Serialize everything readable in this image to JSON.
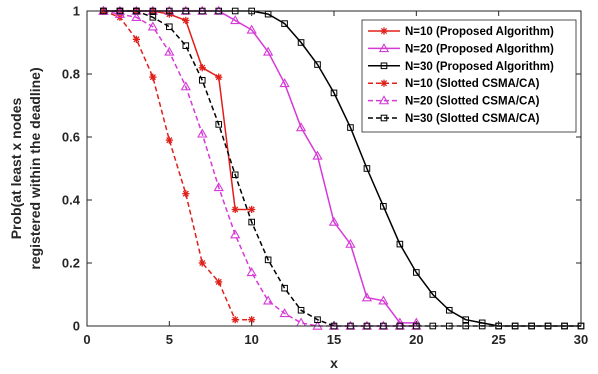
{
  "chart_data": {
    "type": "line",
    "xlabel": "x",
    "ylabel_lines": [
      "Prob(at least x nodes",
      "registered within the deadline)"
    ],
    "xlim": [
      0,
      30
    ],
    "ylim": [
      0,
      1
    ],
    "xticks": [
      "0",
      "5",
      "10",
      "15",
      "20",
      "25",
      "30"
    ],
    "yticks": [
      "0",
      "0.2",
      "0.4",
      "0.6",
      "0.8",
      "1"
    ],
    "grid": false,
    "legend_position": "top-right",
    "series": [
      {
        "name": "N=10 (Proposed Algorithm)",
        "color": "#e0201b",
        "dash": "solid",
        "marker": "asterisk",
        "x": [
          1,
          2,
          3,
          4,
          5,
          6,
          7,
          8,
          9,
          10
        ],
        "y": [
          1,
          1,
          1,
          1,
          0.99,
          0.97,
          0.82,
          0.79,
          0.37,
          0.37
        ]
      },
      {
        "name": "N=20 (Proposed Algorithm)",
        "color": "#d63ad6",
        "dash": "solid",
        "marker": "triangle",
        "x": [
          1,
          2,
          3,
          4,
          5,
          6,
          7,
          8,
          9,
          10,
          11,
          12,
          13,
          14,
          15,
          16,
          17,
          18,
          19,
          20
        ],
        "y": [
          1,
          1,
          1,
          1,
          1,
          1,
          1,
          1,
          0.97,
          0.94,
          0.87,
          0.77,
          0.63,
          0.54,
          0.33,
          0.26,
          0.09,
          0.08,
          0.01,
          0.01
        ]
      },
      {
        "name": "N=30 (Proposed Algorithm)",
        "color": "#000000",
        "dash": "solid",
        "marker": "square",
        "x": [
          1,
          2,
          3,
          4,
          5,
          6,
          7,
          8,
          9,
          10,
          11,
          12,
          13,
          14,
          15,
          16,
          17,
          18,
          19,
          20,
          21,
          22,
          23,
          24,
          25,
          26,
          27,
          28,
          29,
          30
        ],
        "y": [
          1,
          1,
          1,
          1,
          1,
          1,
          1,
          1,
          1,
          1,
          0.99,
          0.96,
          0.9,
          0.83,
          0.74,
          0.63,
          0.5,
          0.38,
          0.26,
          0.17,
          0.1,
          0.05,
          0.02,
          0.01,
          0,
          0,
          0,
          0,
          0,
          0
        ]
      },
      {
        "name": "N=10 (Slotted CSMA/CA)",
        "color": "#e0201b",
        "dash": "dashed",
        "marker": "asterisk",
        "x": [
          1,
          2,
          3,
          4,
          5,
          6,
          7,
          8,
          9,
          10
        ],
        "y": [
          1,
          0.98,
          0.91,
          0.79,
          0.59,
          0.42,
          0.2,
          0.14,
          0.02,
          0.02
        ]
      },
      {
        "name": "N=20 (Slotted CSMA/CA)",
        "color": "#d63ad6",
        "dash": "dashed",
        "marker": "triangle",
        "x": [
          1,
          2,
          3,
          4,
          5,
          6,
          7,
          8,
          9,
          10,
          11,
          12,
          13,
          14,
          15,
          16,
          17,
          18,
          19,
          20
        ],
        "y": [
          1,
          0.99,
          0.98,
          0.95,
          0.87,
          0.76,
          0.61,
          0.44,
          0.29,
          0.17,
          0.08,
          0.04,
          0.01,
          0,
          0,
          0,
          0,
          0,
          0,
          0
        ]
      },
      {
        "name": "N=30 (Slotted CSMA/CA)",
        "color": "#000000",
        "dash": "dashed",
        "marker": "square",
        "x": [
          1,
          2,
          3,
          4,
          5,
          6,
          7,
          8,
          9,
          10,
          11,
          12,
          13,
          14,
          15,
          16,
          17,
          18,
          19,
          20,
          21,
          22,
          23,
          24,
          25,
          26,
          27,
          28,
          29,
          30
        ],
        "y": [
          1,
          1,
          1,
          0.98,
          0.95,
          0.89,
          0.78,
          0.64,
          0.48,
          0.33,
          0.21,
          0.12,
          0.05,
          0.02,
          0,
          0,
          0,
          0,
          0,
          0,
          0,
          0,
          0,
          0,
          0,
          0,
          0,
          0,
          0,
          0
        ]
      }
    ]
  }
}
